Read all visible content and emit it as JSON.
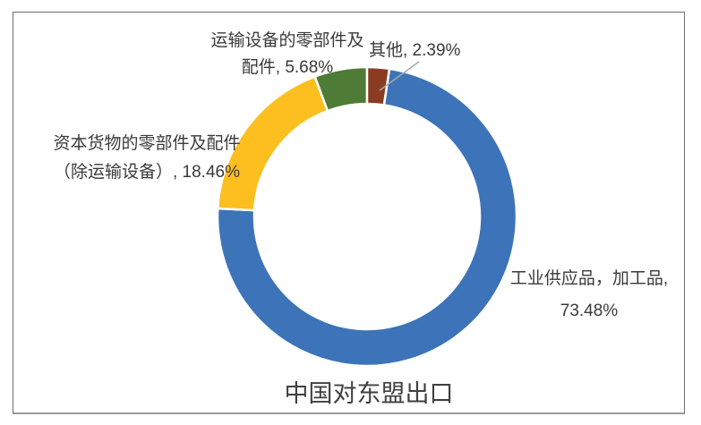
{
  "title": "中国对东盟出口",
  "chart_data": {
    "type": "pie",
    "subtype": "donut",
    "title": "中国对东盟出口",
    "unit": "%",
    "legend": "none",
    "labels_position": "outside",
    "start_angle_deg": 8.6,
    "hole_ratio": 0.75,
    "segments": [
      {
        "label": "工业供应品，加工品",
        "value": 73.48,
        "color": "#3D73B8"
      },
      {
        "label": "资本货物的零部件及配件（除运输设备）",
        "value": 18.46,
        "color": "#FCBF1F"
      },
      {
        "label": "运输设备的零部件及配件",
        "value": 5.68,
        "color": "#4E7B36"
      },
      {
        "label": "其他",
        "value": 2.39,
        "color": "#8A3C22"
      }
    ]
  },
  "labels": {
    "transport": {
      "line1": "运输设备的零部件及",
      "line2": "配件, 5.68%"
    },
    "other": {
      "text": "其他, 2.39%"
    },
    "capital": {
      "line1": "资本货物的零部件及配件",
      "line2": "（除运输设备）, 18.46%"
    },
    "industrial": {
      "line1": "工业供应品，加工品,",
      "line2": "73.48%"
    }
  },
  "colors": {
    "leader_line": "#a9a9a9",
    "label_text": "#3a3a3a",
    "frame_border": "#6e6e6e"
  }
}
